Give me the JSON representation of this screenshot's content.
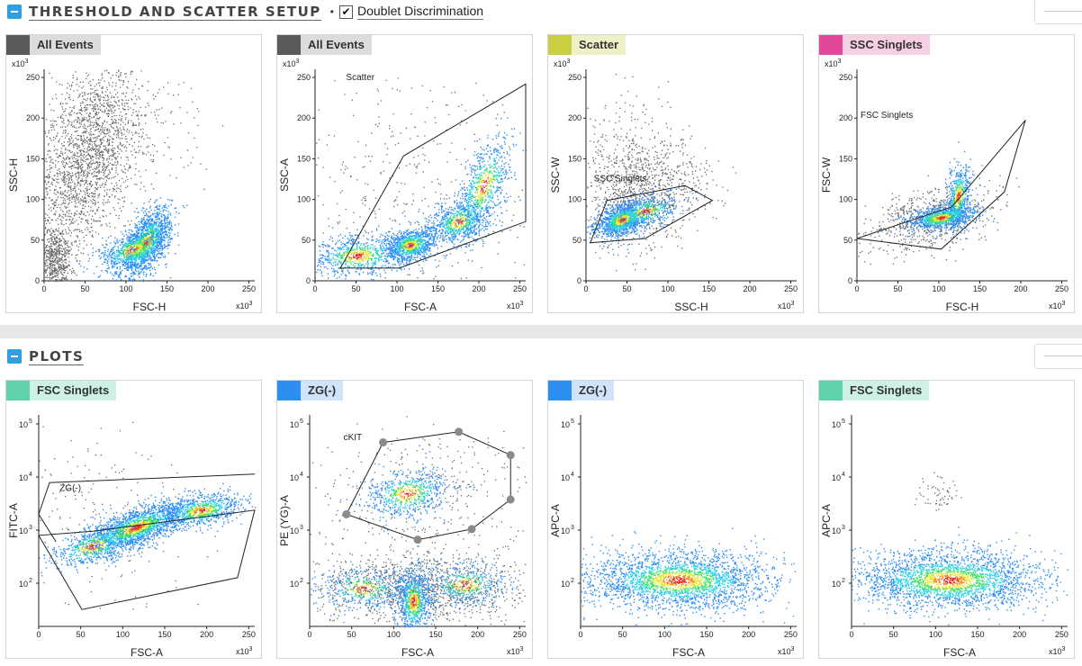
{
  "sections": [
    {
      "title": "THRESHOLD AND SCATTER SETUP",
      "checkbox_label": "Doublet Discrimination",
      "checked": true
    },
    {
      "title": "PLOTS"
    }
  ],
  "panels": [
    {
      "tag": "All Events",
      "tag_color": "#5a5a5a",
      "tag_bg": "#dcdcdc",
      "xlabel": "FSC-H",
      "ylabel": "SSC-H",
      "scale": "x10",
      "exp": "3",
      "yticks": [
        "0",
        "50",
        "100",
        "150",
        "200",
        "250"
      ],
      "xticks": [
        "0",
        "50",
        "100",
        "150",
        "200",
        "250"
      ],
      "gate": ""
    },
    {
      "tag": "All Events",
      "tag_color": "#5a5a5a",
      "tag_bg": "#dcdcdc",
      "xlabel": "FSC-A",
      "ylabel": "SSC-A",
      "scale": "x10",
      "exp": "3",
      "yticks": [
        "0",
        "50",
        "100",
        "150",
        "200",
        "250"
      ],
      "xticks": [
        "0",
        "50",
        "100",
        "150",
        "200",
        "250"
      ],
      "gate": "Scatter"
    },
    {
      "tag": "Scatter",
      "tag_color": "#c9cf3e",
      "tag_bg": "#eef0c6",
      "xlabel": "SSC-H",
      "ylabel": "SSC-W",
      "scale": "x10",
      "exp": "3",
      "yticks": [
        "0",
        "50",
        "100",
        "150",
        "200",
        "250"
      ],
      "xticks": [
        "0",
        "50",
        "100",
        "150",
        "200",
        "250"
      ],
      "gate": "SSC Singlets"
    },
    {
      "tag": "SSC Singlets",
      "tag_color": "#e2479a",
      "tag_bg": "#f7cfe3",
      "xlabel": "FSC-H",
      "ylabel": "FSC-W",
      "scale": "x10",
      "exp": "3",
      "yticks": [
        "0",
        "50",
        "100",
        "150",
        "200",
        "250"
      ],
      "xticks": [
        "0",
        "50",
        "100",
        "150",
        "200",
        "250"
      ],
      "gate": "FSC Singlets"
    },
    {
      "tag": "FSC Singlets",
      "tag_color": "#5fd1ab",
      "tag_bg": "#cdf2e3",
      "xlabel": "FSC-A",
      "ylabel": "FITC-A",
      "scale": "x10",
      "exp": "3",
      "yticks": [
        "10",
        "10",
        "10",
        "10"
      ],
      "yexp": [
        "2",
        "3",
        "4",
        "5"
      ],
      "xticks": [
        "0",
        "50",
        "100",
        "150",
        "200",
        "250"
      ],
      "gate": "ZG(-)"
    },
    {
      "tag": "ZG(-)",
      "tag_color": "#2c8ff0",
      "tag_bg": "#cfe3fb",
      "xlabel": "FSC-A",
      "ylabel": "PE (YG)-A",
      "scale": "x10",
      "exp": "3",
      "yticks": [
        "10",
        "10",
        "10",
        "10"
      ],
      "yexp": [
        "2",
        "3",
        "4",
        "5"
      ],
      "xticks": [
        "0",
        "50",
        "100",
        "150",
        "200",
        "250"
      ],
      "gate": "cKIT"
    },
    {
      "tag": "ZG(-)",
      "tag_color": "#2c8ff0",
      "tag_bg": "#cfe3fb",
      "xlabel": "FSC-A",
      "ylabel": "APC-A",
      "scale": "x10",
      "exp": "3",
      "yticks": [
        "10",
        "10",
        "10",
        "10"
      ],
      "yexp": [
        "2",
        "3",
        "4",
        "5"
      ],
      "xticks": [
        "0",
        "50",
        "100",
        "150",
        "200",
        "250"
      ],
      "gate": ""
    },
    {
      "tag": "FSC Singlets",
      "tag_color": "#5fd1ab",
      "tag_bg": "#cdf2e3",
      "xlabel": "FSC-A",
      "ylabel": "APC-A",
      "scale": "x10",
      "exp": "3",
      "yticks": [
        "10",
        "10",
        "10",
        "10"
      ],
      "yexp": [
        "2",
        "3",
        "4",
        "5"
      ],
      "xticks": [
        "0",
        "50",
        "100",
        "150",
        "200",
        "250"
      ],
      "gate": ""
    }
  ]
}
